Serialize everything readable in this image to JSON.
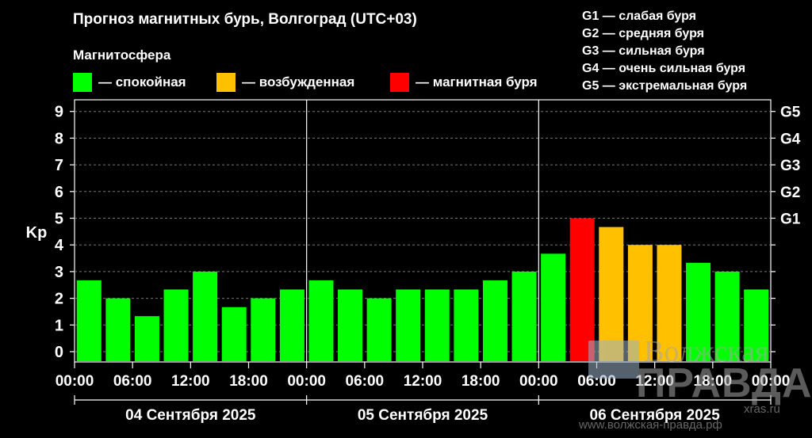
{
  "header": {
    "title": "Прогноз магнитных бурь, Волгоград (UTC+03)",
    "subtitle": "Магнитосфера"
  },
  "legend": [
    {
      "label": "— спокойная",
      "color": "#00ff00"
    },
    {
      "label": "— возбужденная",
      "color": "#ffc000"
    },
    {
      "label": "— магнитная буря",
      "color": "#ff0000"
    }
  ],
  "g_legend": [
    "G1 — слабая буря",
    "G2 — средняя буря",
    "G3 — сильная буря",
    "G4 — очень сильная буря",
    "G5 — экстремальная буря"
  ],
  "watermark": {
    "line1": "Волжская",
    "line2": "ПРАВДА",
    "line3": "xras.ru",
    "line4": "www.волжская-правда.рф"
  },
  "chart_data": {
    "type": "bar",
    "ylabel": "Kp",
    "ylim": [
      0,
      9
    ],
    "yticks": [
      "0",
      "1",
      "2",
      "3",
      "4",
      "5",
      "6",
      "7",
      "8",
      "9"
    ],
    "right_ticks": [
      {
        "value": 5,
        "label": "G1"
      },
      {
        "value": 6,
        "label": "G2"
      },
      {
        "value": 7,
        "label": "G3"
      },
      {
        "value": 8,
        "label": "G4"
      },
      {
        "value": 9,
        "label": "G5"
      }
    ],
    "grid": true,
    "xtick_labels": [
      "00:00",
      "06:00",
      "12:00",
      "18:00",
      "00:00",
      "06:00",
      "12:00",
      "18:00",
      "00:00",
      "06:00",
      "12:00",
      "18:00",
      "00:00"
    ],
    "days": [
      "04 Сентября 2025",
      "05 Сентября 2025",
      "06 Сентября 2025"
    ],
    "bar_colors": {
      "quiet": "#00ff00",
      "active": "#ffc000",
      "storm": "#ff0000"
    },
    "values": [
      2.67,
      2.0,
      1.33,
      2.33,
      3.0,
      1.67,
      2.0,
      2.33,
      2.67,
      2.33,
      2.0,
      2.33,
      2.33,
      2.33,
      2.67,
      3.0,
      3.67,
      5.0,
      4.67,
      4.0,
      4.0,
      3.33,
      3.0,
      2.33
    ],
    "levels": [
      "quiet",
      "quiet",
      "quiet",
      "quiet",
      "quiet",
      "quiet",
      "quiet",
      "quiet",
      "quiet",
      "quiet",
      "quiet",
      "quiet",
      "quiet",
      "quiet",
      "quiet",
      "quiet",
      "quiet",
      "storm",
      "active",
      "active",
      "active",
      "quiet",
      "quiet",
      "quiet"
    ]
  }
}
